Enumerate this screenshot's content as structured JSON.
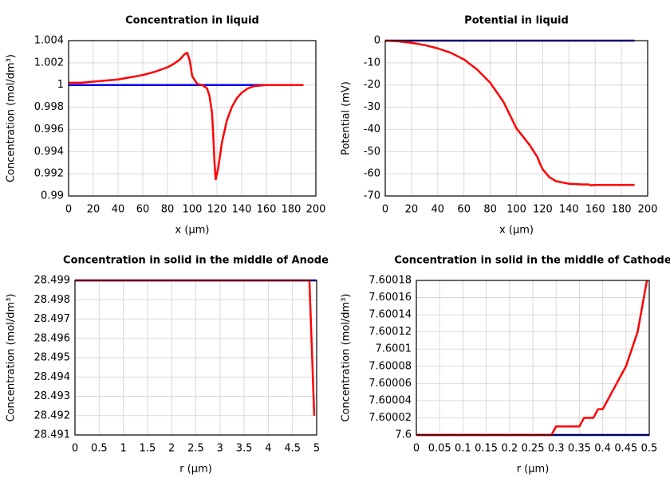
{
  "chart_data": [
    {
      "type": "line",
      "title": "Concentration in liquid",
      "xlabel": "x (µm)",
      "ylabel": "Concentration (mol/dm³)",
      "xlim": [
        0,
        200
      ],
      "xticks": [
        0,
        20,
        40,
        60,
        80,
        100,
        120,
        140,
        160,
        180,
        200
      ],
      "ylim": [
        0.99,
        1.004
      ],
      "yticks": [
        0.99,
        0.992,
        0.994,
        0.996,
        0.998,
        1,
        1.002,
        1.004
      ],
      "grid": true,
      "series": [
        {
          "color": "#0000e6",
          "x": [
            0,
            190
          ],
          "values": [
            1,
            1
          ]
        },
        {
          "color": "#ff0000",
          "x": [
            0,
            10,
            20,
            30,
            40,
            50,
            60,
            70,
            80,
            85,
            90,
            94,
            96,
            98,
            100,
            104,
            108,
            112,
            114,
            116,
            117,
            118,
            119,
            121,
            124,
            128,
            132,
            136,
            140,
            145,
            150,
            160,
            170,
            180,
            190
          ],
          "values": [
            1.0002,
            1.0002,
            1.0003,
            1.0004,
            1.0005,
            1.0007,
            1.0009,
            1.0012,
            1.0016,
            1.0019,
            1.0023,
            1.0028,
            1.0029,
            1.0022,
            1.0008,
            1.0001,
            1.0,
            0.9997,
            0.999,
            0.9975,
            0.9955,
            0.993,
            0.9915,
            0.9925,
            0.9948,
            0.9968,
            0.998,
            0.9988,
            0.9993,
            0.9997,
            0.9999,
            1.0,
            1.0,
            1.0,
            1.0
          ]
        }
      ]
    },
    {
      "type": "line",
      "title": "Potential in liquid",
      "xlabel": "x (µm)",
      "ylabel": "Potential (mV)",
      "xlim": [
        0,
        200
      ],
      "xticks": [
        0,
        20,
        40,
        60,
        80,
        100,
        120,
        140,
        160,
        180,
        200
      ],
      "ylim": [
        -70,
        0
      ],
      "yticks": [
        -70,
        -60,
        -50,
        -40,
        -30,
        -20,
        -10,
        0
      ],
      "grid": true,
      "series": [
        {
          "color": "#0000e6",
          "x": [
            0,
            190
          ],
          "values": [
            0,
            0
          ]
        },
        {
          "color": "#ff0000",
          "x": [
            0,
            10,
            20,
            30,
            40,
            50,
            60,
            70,
            80,
            90,
            100,
            110,
            116,
            118,
            120,
            125,
            130,
            140,
            150,
            155,
            157,
            160,
            170,
            180,
            190
          ],
          "values": [
            0,
            -0.3,
            -1,
            -2,
            -3.5,
            -5.5,
            -8.5,
            -13,
            -19,
            -27.5,
            -39.5,
            -47,
            -52.5,
            -55.5,
            -58,
            -61.5,
            -63.3,
            -64.5,
            -64.8,
            -64.8,
            -65.2,
            -65,
            -65,
            -65,
            -65
          ]
        }
      ]
    },
    {
      "type": "line",
      "title": "Concentration in solid in the middle of Anode",
      "xlabel": "r (µm)",
      "ylabel": "Concentration (mol/dm³)",
      "xlim": [
        0,
        5
      ],
      "xticks": [
        0,
        0.5,
        1,
        1.5,
        2,
        2.5,
        3,
        3.5,
        4,
        4.5,
        5
      ],
      "ylim": [
        28.491,
        28.499
      ],
      "yticks": [
        28.491,
        28.492,
        28.493,
        28.494,
        28.495,
        28.496,
        28.497,
        28.498,
        28.499
      ],
      "grid": true,
      "series": [
        {
          "color": "#0000e6",
          "x": [
            0,
            5
          ],
          "values": [
            28.499,
            28.499
          ]
        },
        {
          "color": "#ff0000",
          "x": [
            0,
            4.8,
            4.85,
            4.95
          ],
          "values": [
            28.499,
            28.499,
            28.499,
            28.492
          ]
        }
      ]
    },
    {
      "type": "line",
      "title": "Concentration in solid in the middle of Cathode",
      "xlabel": "r (µm)",
      "ylabel": "Concentration (mol/dm³)",
      "xlim": [
        0,
        0.5
      ],
      "xticks": [
        0,
        0.05,
        0.1,
        0.15,
        0.2,
        0.25,
        0.3,
        0.35,
        0.4,
        0.45,
        0.5
      ],
      "ylim": [
        7.6,
        7.60018
      ],
      "yticks": [
        7.6,
        7.60002,
        7.60004,
        7.60006,
        7.60008,
        7.6001,
        7.60012,
        7.60014,
        7.60016,
        7.60018
      ],
      "grid": true,
      "series": [
        {
          "color": "#0000e6",
          "x": [
            0,
            0.5
          ],
          "values": [
            7.6,
            7.6
          ]
        },
        {
          "color": "#ff0000",
          "x": [
            0,
            0.29,
            0.3,
            0.35,
            0.36,
            0.38,
            0.39,
            0.4,
            0.45,
            0.475,
            0.495
          ],
          "values": [
            7.6,
            7.6,
            7.60001,
            7.60001,
            7.60002,
            7.60002,
            7.60003,
            7.60003,
            7.60008,
            7.60012,
            7.60018
          ]
        }
      ]
    }
  ]
}
